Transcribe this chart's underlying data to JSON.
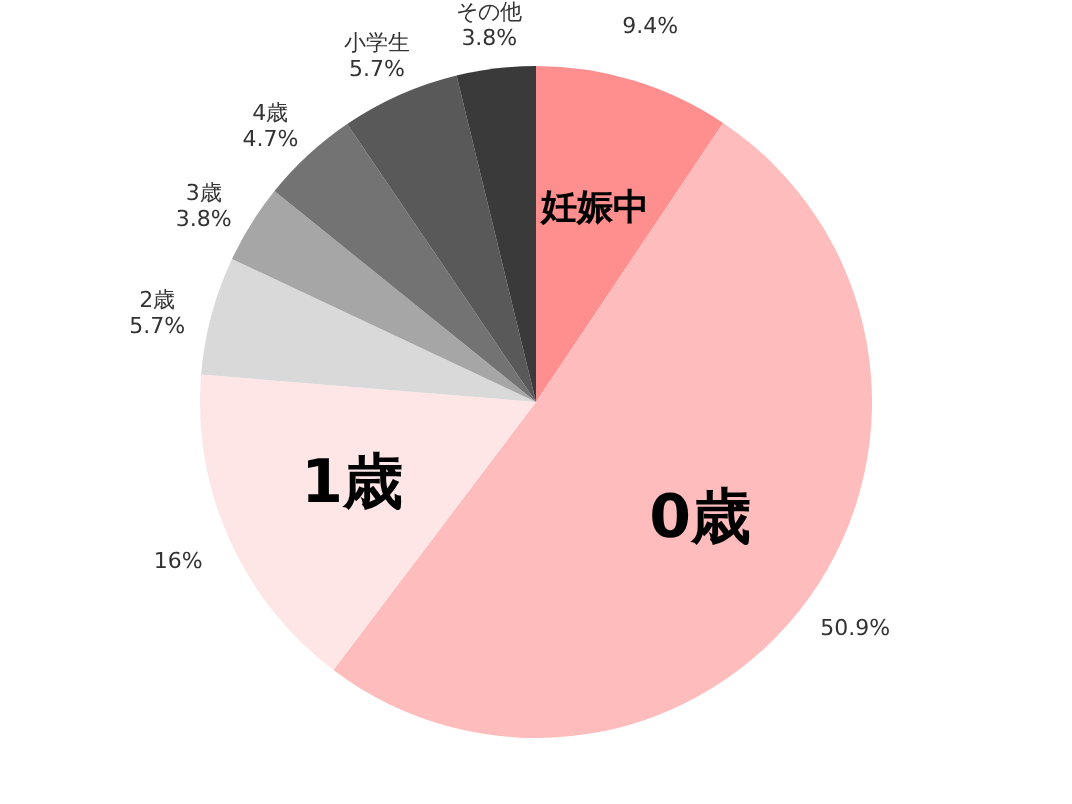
{
  "chart_data": {
    "type": "pie",
    "categories": [
      "妊娠中",
      "0歳",
      "1歳",
      "2歳",
      "3歳",
      "4歳",
      "小学生",
      "その他"
    ],
    "values": [
      9.4,
      50.9,
      16,
      5.7,
      3.8,
      4.7,
      5.7,
      3.8
    ],
    "value_labels": [
      "9.4%",
      "50.9%",
      "16%",
      "5.7%",
      "3.8%",
      "4.7%",
      "5.7%",
      "3.8%"
    ],
    "colors": [
      "#ff8f8f",
      "#ffbcbc",
      "#ffe6e6",
      "#d9d9d9",
      "#a6a6a6",
      "#737373",
      "#595959",
      "#3a3a3a"
    ],
    "legend": false
  }
}
